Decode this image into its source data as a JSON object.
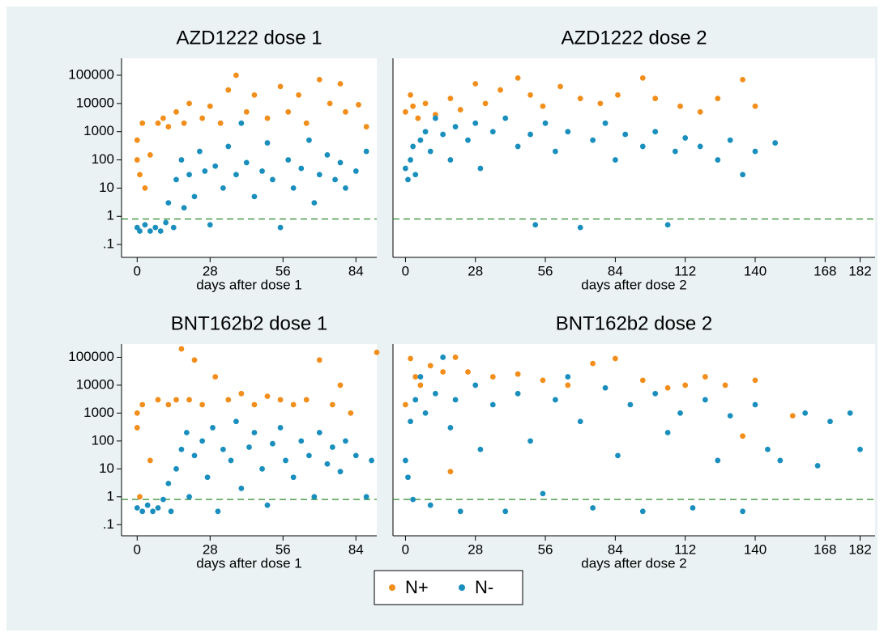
{
  "chart_data": [
    {
      "type": "scatter",
      "title": "AZD1222 dose 1",
      "x_label": "days after dose 1",
      "log_y": true,
      "xlim": [
        -6,
        92
      ],
      "xticks": [
        0,
        28,
        56,
        84
      ],
      "ylim": [
        0.035,
        400000
      ],
      "yticks": [
        {
          "value": 0.1,
          "label": ".1"
        },
        1,
        10,
        100,
        1000,
        10000,
        100000
      ],
      "reference_line": {
        "value": 0.8,
        "color": "#2e8b2e"
      },
      "series": [
        {
          "name": "N+",
          "color": "#f28e1c",
          "x": [
            0,
            0,
            1,
            2,
            3,
            5,
            8,
            10,
            12,
            15,
            18,
            20,
            25,
            28,
            32,
            35,
            38,
            42,
            45,
            50,
            55,
            58,
            62,
            65,
            70,
            74,
            78,
            80,
            85,
            88
          ],
          "values": [
            500,
            100,
            30,
            2000,
            10,
            150,
            2000,
            3000,
            1500,
            5000,
            2000,
            10000,
            3000,
            8000,
            2000,
            30000,
            100000,
            5000,
            20000,
            3000,
            40000,
            5000,
            20000,
            2000,
            70000,
            10000,
            50000,
            5000,
            9000,
            1500
          ]
        },
        {
          "name": "N-",
          "color": "#1a8fbd",
          "x": [
            0,
            1,
            3,
            5,
            7,
            9,
            11,
            12,
            14,
            15,
            17,
            18,
            20,
            22,
            24,
            26,
            28,
            30,
            33,
            35,
            38,
            40,
            42,
            45,
            48,
            50,
            52,
            55,
            58,
            60,
            63,
            66,
            68,
            70,
            73,
            76,
            78,
            80,
            84,
            88
          ],
          "values": [
            0.4,
            0.3,
            0.5,
            0.3,
            0.4,
            0.3,
            0.6,
            3,
            0.4,
            20,
            100,
            2,
            30,
            5,
            200,
            40,
            0.5,
            60,
            10,
            300,
            30,
            2000,
            80,
            5,
            40,
            400,
            20,
            0.4,
            100,
            10,
            50,
            500,
            3,
            30,
            150,
            20,
            80,
            10,
            40,
            200
          ]
        }
      ]
    },
    {
      "type": "scatter",
      "title": "AZD1222 dose 2",
      "x_label": "days after dose 2",
      "log_y": true,
      "xlim": [
        -5,
        188
      ],
      "xticks": [
        0,
        28,
        56,
        84,
        112,
        140,
        168,
        182
      ],
      "ylim": [
        0.035,
        400000
      ],
      "reference_line": {
        "value": 0.8,
        "color": "#2e8b2e"
      },
      "series": [
        {
          "name": "N+",
          "color": "#f28e1c",
          "x": [
            0,
            2,
            3,
            5,
            8,
            12,
            18,
            22,
            28,
            32,
            38,
            45,
            50,
            55,
            62,
            70,
            78,
            85,
            95,
            100,
            110,
            118,
            125,
            135,
            140
          ],
          "values": [
            5000,
            20000,
            8000,
            3000,
            10000,
            4000,
            15000,
            6000,
            50000,
            10000,
            30000,
            80000,
            20000,
            8000,
            40000,
            15000,
            10000,
            20000,
            80000,
            15000,
            8000,
            5000,
            15000,
            70000,
            8000
          ]
        },
        {
          "name": "N-",
          "color": "#1a8fbd",
          "x": [
            0,
            1,
            2,
            3,
            4,
            6,
            8,
            10,
            12,
            15,
            18,
            20,
            25,
            28,
            30,
            35,
            40,
            45,
            50,
            52,
            56,
            60,
            65,
            70,
            75,
            80,
            84,
            88,
            95,
            100,
            105,
            108,
            112,
            118,
            125,
            130,
            135,
            140,
            148
          ],
          "values": [
            50,
            20,
            100,
            300,
            30,
            500,
            1000,
            200,
            3000,
            800,
            100,
            1500,
            500,
            2000,
            50,
            1000,
            3000,
            300,
            800,
            0.5,
            2000,
            200,
            1000,
            0.4,
            500,
            2000,
            100,
            800,
            300,
            1000,
            0.5,
            200,
            600,
            300,
            100,
            500,
            30,
            200,
            400
          ]
        }
      ]
    },
    {
      "type": "scatter",
      "title": "BNT162b2 dose 1",
      "x_label": "days after dose 1",
      "log_y": true,
      "xlim": [
        -6,
        92
      ],
      "xticks": [
        0,
        28,
        56,
        84
      ],
      "ylim": [
        0.04,
        300000
      ],
      "yticks": [
        {
          "value": 0.1,
          "label": ".1"
        },
        1,
        10,
        100,
        1000,
        10000,
        100000
      ],
      "reference_line": {
        "value": 0.8,
        "color": "#2e8b2e"
      },
      "series": [
        {
          "name": "N+",
          "color": "#f28e1c",
          "x": [
            0,
            0,
            1,
            2,
            5,
            8,
            12,
            15,
            17,
            20,
            22,
            25,
            30,
            35,
            40,
            45,
            50,
            55,
            60,
            65,
            70,
            75,
            78,
            82,
            92
          ],
          "values": [
            1000,
            300,
            1,
            2000,
            20,
            3000,
            2000,
            3000,
            200000,
            3000,
            80000,
            2000,
            20000,
            3000,
            5000,
            2000,
            4000,
            3000,
            2000,
            3000,
            80000,
            2000,
            10000,
            1000,
            150000
          ]
        },
        {
          "name": "N-",
          "color": "#1a8fbd",
          "x": [
            0,
            2,
            4,
            6,
            8,
            10,
            12,
            13,
            15,
            17,
            19,
            20,
            22,
            25,
            27,
            29,
            31,
            33,
            36,
            38,
            40,
            43,
            45,
            48,
            50,
            52,
            55,
            57,
            60,
            63,
            66,
            68,
            70,
            73,
            75,
            78,
            80,
            84,
            88,
            90
          ],
          "values": [
            0.4,
            0.3,
            0.5,
            0.3,
            0.4,
            0.8,
            3,
            0.3,
            10,
            50,
            200,
            1,
            30,
            100,
            5,
            300,
            0.3,
            50,
            20,
            500,
            2,
            60,
            200,
            10,
            0.5,
            80,
            300,
            20,
            5,
            100,
            30,
            1,
            200,
            15,
            60,
            8,
            100,
            30,
            1,
            20
          ]
        }
      ]
    },
    {
      "type": "scatter",
      "title": "BNT162b2 dose 2",
      "x_label": "days after dose 2",
      "log_y": true,
      "xlim": [
        -5,
        188
      ],
      "xticks": [
        0,
        28,
        56,
        84,
        112,
        140,
        168,
        182
      ],
      "ylim": [
        0.04,
        300000
      ],
      "reference_line": {
        "value": 0.8,
        "color": "#2e8b2e"
      },
      "series": [
        {
          "name": "N+",
          "color": "#f28e1c",
          "x": [
            0,
            2,
            4,
            6,
            10,
            15,
            18,
            20,
            25,
            35,
            45,
            55,
            65,
            75,
            84,
            95,
            105,
            112,
            120,
            128,
            135,
            140,
            155
          ],
          "values": [
            2000,
            90000,
            20000,
            10000,
            50000,
            30000,
            8,
            100000,
            30000,
            20000,
            25000,
            15000,
            10000,
            60000,
            90000,
            15000,
            8000,
            10000,
            20000,
            10000,
            150,
            15000,
            800
          ]
        },
        {
          "name": "N-",
          "color": "#1a8fbd",
          "x": [
            0,
            1,
            2,
            3,
            4,
            6,
            8,
            10,
            12,
            15,
            18,
            20,
            22,
            28,
            30,
            35,
            40,
            45,
            50,
            55,
            60,
            65,
            70,
            75,
            80,
            85,
            90,
            95,
            100,
            105,
            110,
            115,
            120,
            125,
            130,
            135,
            140,
            145,
            150,
            160,
            165,
            170,
            178,
            182
          ],
          "values": [
            20,
            5,
            500,
            0.8,
            3000,
            20000,
            1000,
            0.5,
            5000,
            100000,
            300,
            3000,
            0.3,
            10000,
            50,
            2000,
            0.3,
            5000,
            100,
            1.3,
            3000,
            20000,
            500,
            0.4,
            8000,
            30,
            2000,
            0.3,
            5000,
            200,
            1000,
            0.4,
            3000,
            20,
            800,
            0.3,
            2000,
            50,
            20,
            1000,
            13,
            500,
            1000,
            50
          ]
        }
      ]
    }
  ]
}
